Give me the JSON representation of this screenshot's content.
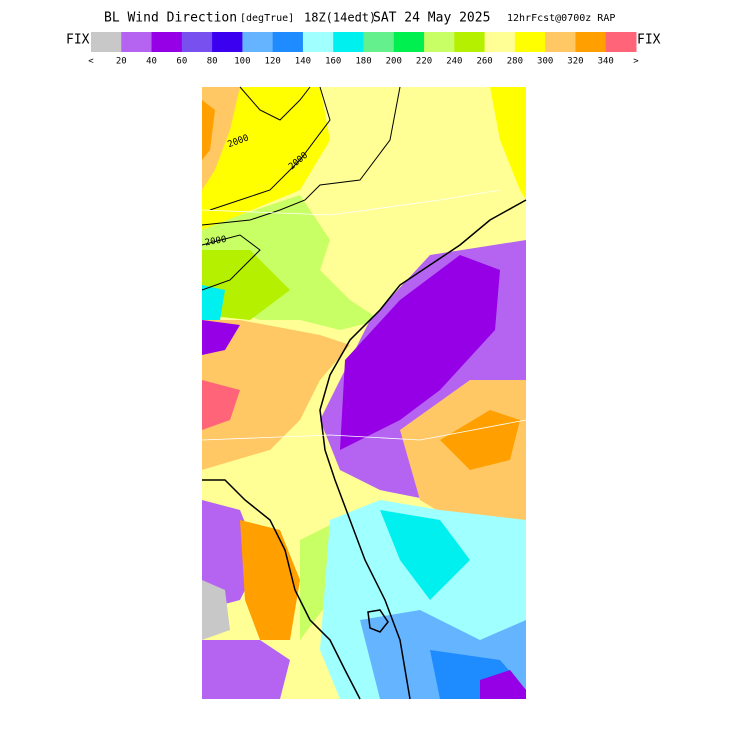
{
  "header": {
    "title_parts": [
      "BL Wind Direction",
      "[degTrue]",
      "18Z(14edt)",
      "SAT 24 May 2025",
      "12hrFcst@0700z RAP"
    ]
  },
  "legend": {
    "left_label": "FIX",
    "right_label": "FIX",
    "colors": [
      "#c8c8c8",
      "#b464f0",
      "#9600e6",
      "#7850f0",
      "#3c00f0",
      "#64b4ff",
      "#1e8cff",
      "#a0ffff",
      "#00f0f0",
      "#64f08c",
      "#00f050",
      "#c8ff64",
      "#b4f000",
      "#ffff96",
      "#ffff00",
      "#ffc864",
      "#ffa000",
      "#ff6478"
    ],
    "labels": [
      "<",
      "20",
      "40",
      "60",
      "80",
      "100",
      "120",
      "140",
      "160",
      "180",
      "200",
      "220",
      "240",
      "260",
      "280",
      "300",
      "320",
      "340",
      ">"
    ]
  },
  "map": {
    "contour_labels": [
      "2000",
      "2000",
      "2000"
    ]
  }
}
